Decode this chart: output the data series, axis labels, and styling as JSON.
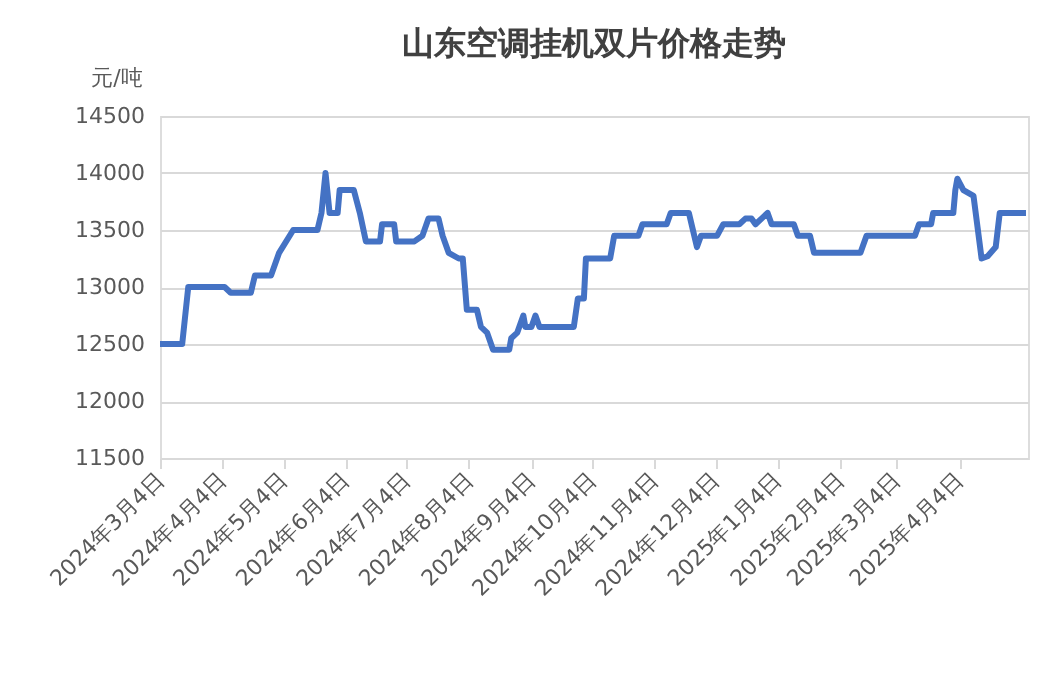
{
  "chart_data": {
    "type": "line",
    "title": "山东空调挂机双片价格走势",
    "ylabel": "元/吨",
    "x": [
      "2024-03-04",
      "2024-03-15",
      "2024-03-18",
      "2024-04-05",
      "2024-04-08",
      "2024-04-18",
      "2024-04-20",
      "2024-04-28",
      "2024-05-02",
      "2024-05-09",
      "2024-05-21",
      "2024-05-23",
      "2024-05-25",
      "2024-05-27",
      "2024-05-31",
      "2024-06-01",
      "2024-06-08",
      "2024-06-11",
      "2024-06-14",
      "2024-06-21",
      "2024-06-22",
      "2024-06-28",
      "2024-06-29",
      "2024-07-08",
      "2024-07-12",
      "2024-07-15",
      "2024-07-20",
      "2024-07-22",
      "2024-07-25",
      "2024-07-30",
      "2024-08-01",
      "2024-08-03",
      "2024-08-08",
      "2024-08-10",
      "2024-08-13",
      "2024-08-16",
      "2024-08-24",
      "2024-08-25",
      "2024-08-28",
      "2024-08-31",
      "2024-09-01",
      "2024-09-04",
      "2024-09-06",
      "2024-09-08",
      "2024-09-25",
      "2024-09-27",
      "2024-09-30",
      "2024-10-01",
      "2024-10-13",
      "2024-10-15",
      "2024-10-27",
      "2024-10-29",
      "2024-11-10",
      "2024-11-12",
      "2024-11-21",
      "2024-11-23",
      "2024-11-25",
      "2024-11-27",
      "2024-12-05",
      "2024-12-08",
      "2024-12-16",
      "2024-12-19",
      "2024-12-22",
      "2024-12-24",
      "2024-12-27",
      "2024-12-30",
      "2025-01-01",
      "2025-01-12",
      "2025-01-14",
      "2025-01-20",
      "2025-01-22",
      "2025-02-14",
      "2025-02-17",
      "2025-03-13",
      "2025-03-15",
      "2025-03-21",
      "2025-03-22",
      "2025-04-01",
      "2025-04-02",
      "2025-04-03",
      "2025-04-06",
      "2025-04-11",
      "2025-04-15",
      "2025-04-18",
      "2025-04-22",
      "2025-04-24",
      "2025-05-07"
    ],
    "series": [
      {
        "color": "#4472c4",
        "values": [
          12500,
          12500,
          13000,
          13000,
          12950,
          12950,
          13100,
          13100,
          13300,
          13500,
          13500,
          13650,
          14000,
          13650,
          13650,
          13850,
          13850,
          13650,
          13400,
          13400,
          13550,
          13550,
          13400,
          13400,
          13450,
          13600,
          13600,
          13450,
          13300,
          13250,
          13250,
          12800,
          12800,
          12650,
          12600,
          12450,
          12450,
          12550,
          12600,
          12750,
          12650,
          12650,
          12750,
          12650,
          12650,
          12900,
          12900,
          13250,
          13250,
          13450,
          13450,
          13550,
          13550,
          13650,
          13650,
          13500,
          13350,
          13450,
          13450,
          13550,
          13550,
          13600,
          13600,
          13550,
          13600,
          13650,
          13550,
          13550,
          13450,
          13450,
          13300,
          13300,
          13450,
          13450,
          13550,
          13550,
          13650,
          13650,
          13850,
          13950,
          13850,
          13800,
          13250,
          13270,
          13350,
          13650,
          13650
        ]
      }
    ],
    "xlim": [
      "2024-03-04",
      "2025-05-08"
    ],
    "xticks": [
      {
        "value": "2024-03-04",
        "label": "2024年3月4日"
      },
      {
        "value": "2024-04-04",
        "label": "2024年4月4日"
      },
      {
        "value": "2024-05-04",
        "label": "2024年5月4日"
      },
      {
        "value": "2024-06-04",
        "label": "2024年6月4日"
      },
      {
        "value": "2024-07-04",
        "label": "2024年7月4日"
      },
      {
        "value": "2024-08-04",
        "label": "2024年8月4日"
      },
      {
        "value": "2024-09-04",
        "label": "2024年9月4日"
      },
      {
        "value": "2024-10-04",
        "label": "2024年10月4日"
      },
      {
        "value": "2024-11-04",
        "label": "2024年11月4日"
      },
      {
        "value": "2024-12-04",
        "label": "2024年12月4日"
      },
      {
        "value": "2025-01-04",
        "label": "2025年1月4日"
      },
      {
        "value": "2025-02-04",
        "label": "2025年2月4日"
      },
      {
        "value": "2025-03-04",
        "label": "2025年3月4日"
      },
      {
        "value": "2025-04-04",
        "label": "2025年4月4日"
      }
    ],
    "ylim": [
      11500,
      14500
    ],
    "yticks": [
      11500,
      12000,
      12500,
      13000,
      13500,
      14000,
      14500
    ],
    "grid": "y",
    "marker": "none",
    "line_style": "solid"
  }
}
